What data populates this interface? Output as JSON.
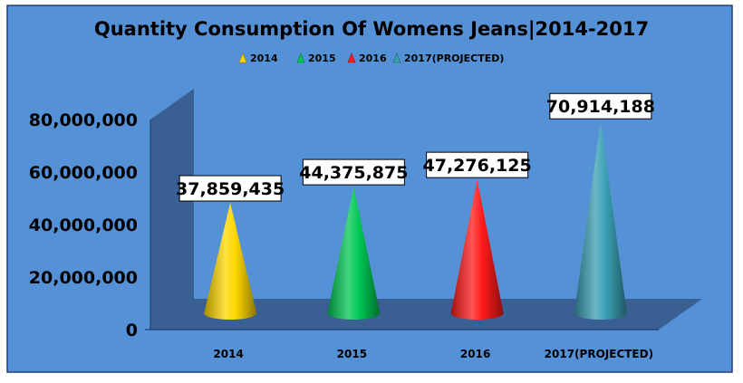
{
  "chart_data": {
    "type": "bar",
    "shape": "cone-3d",
    "title": "Quantity Consumption Of Womens Jeans|2014-2017",
    "categories": [
      "2014",
      "2015",
      "2016",
      "2017(PROJECTED)"
    ],
    "series": [
      {
        "name": "2014",
        "category": "2014",
        "value": 37859435,
        "label": "37,859,435",
        "color": "#ffd700"
      },
      {
        "name": "2015",
        "category": "2015",
        "value": 44375875,
        "label": "44,375,875",
        "color": "#00c853"
      },
      {
        "name": "2016",
        "category": "2016",
        "value": 47276125,
        "label": "47,276,125",
        "color": "#ff1a1a"
      },
      {
        "name": "2017(PROJECTED)",
        "category": "2017(PROJECTED)",
        "value": 70914188,
        "label": "70,914,188",
        "color": "#3aa0b4"
      }
    ],
    "ylim": [
      0,
      80000000
    ],
    "yticks": [
      0,
      20000000,
      40000000,
      60000000,
      80000000
    ],
    "ytick_labels": [
      "0",
      "20,000,000",
      "40,000,000",
      "60,000,000",
      "80,000,000"
    ],
    "legend_position": "top",
    "grid": false,
    "colors": {
      "background": "#5591d6",
      "walls": "#3a5f93",
      "border": "#1f3f7a"
    }
  }
}
